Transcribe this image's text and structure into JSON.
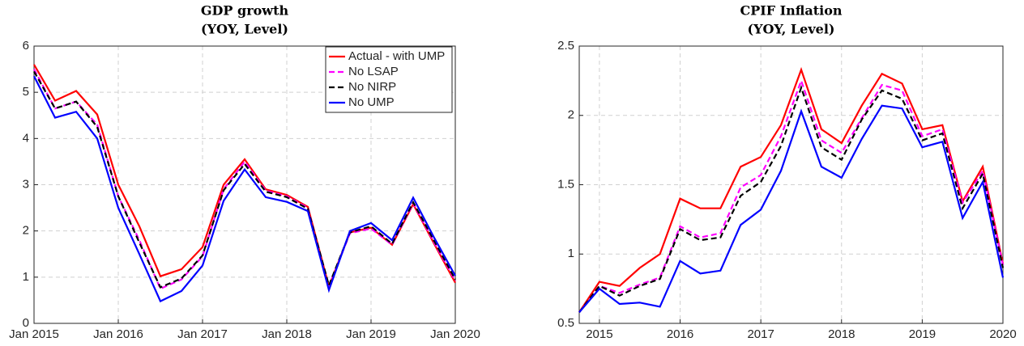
{
  "chart_data": [
    {
      "type": "line",
      "title": "GDP growth",
      "subtitle": "(YOY, Level)",
      "x": [
        2015,
        2015.25,
        2015.5,
        2015.75,
        2016,
        2016.25,
        2016.5,
        2016.75,
        2017,
        2017.25,
        2017.5,
        2017.75,
        2018,
        2018.25,
        2018.5,
        2018.75,
        2019,
        2019.25,
        2019.5,
        2019.75,
        2020
      ],
      "series": [
        {
          "name": "Actual - with UMP",
          "color": "#ff0000",
          "dash": "solid",
          "values": [
            5.6,
            4.82,
            5.03,
            4.52,
            3.0,
            2.1,
            1.02,
            1.17,
            1.65,
            3.0,
            3.55,
            2.9,
            2.78,
            2.52,
            0.8,
            1.97,
            2.07,
            1.7,
            2.58,
            1.72,
            0.88
          ]
        },
        {
          "name": "No LSAP",
          "color": "#ff00ff",
          "dash": "dashed",
          "values": [
            5.5,
            4.65,
            4.8,
            4.3,
            2.75,
            1.8,
            0.75,
            0.95,
            1.45,
            2.9,
            3.5,
            2.87,
            2.75,
            2.5,
            0.8,
            1.95,
            2.05,
            1.7,
            2.6,
            1.75,
            0.92
          ]
        },
        {
          "name": "No NIRP",
          "color": "#000000",
          "dash": "dashed",
          "values": [
            5.45,
            4.65,
            4.8,
            4.25,
            2.75,
            1.75,
            0.78,
            0.97,
            1.47,
            2.88,
            3.45,
            2.85,
            2.73,
            2.48,
            0.82,
            1.97,
            2.1,
            1.72,
            2.62,
            1.78,
            0.95
          ]
        },
        {
          "name": "No UMP",
          "color": "#0000ff",
          "dash": "solid",
          "values": [
            5.35,
            4.45,
            4.58,
            4.0,
            2.5,
            1.5,
            0.48,
            0.7,
            1.25,
            2.65,
            3.33,
            2.73,
            2.63,
            2.43,
            0.72,
            2.0,
            2.17,
            1.8,
            2.72,
            1.85,
            1.03
          ]
        }
      ],
      "xlim": [
        2015,
        2020
      ],
      "xticks": [
        {
          "value": 2015,
          "label": "Jan 2015"
        },
        {
          "value": 2016,
          "label": "Jan 2016"
        },
        {
          "value": 2017,
          "label": "Jan 2017"
        },
        {
          "value": 2018,
          "label": "Jan 2018"
        },
        {
          "value": 2019,
          "label": "Jan 2019"
        },
        {
          "value": 2020,
          "label": "Jan 2020"
        }
      ],
      "ylim": [
        0,
        6
      ],
      "yticks": [
        0,
        1,
        2,
        3,
        4,
        5,
        6
      ],
      "grid": true,
      "legend": "upper right"
    },
    {
      "type": "line",
      "title": "CPIF Inflation",
      "subtitle": "(YOY, Level)",
      "x": [
        2014.75,
        2015,
        2015.25,
        2015.5,
        2015.75,
        2016,
        2016.25,
        2016.5,
        2016.75,
        2017,
        2017.25,
        2017.5,
        2017.75,
        2018,
        2018.25,
        2018.5,
        2018.75,
        2019,
        2019.25,
        2019.5,
        2019.75,
        2020
      ],
      "series": [
        {
          "color": "#ff0000",
          "dash": "solid",
          "values": [
            0.58,
            0.8,
            0.77,
            0.9,
            1.0,
            1.4,
            1.33,
            1.33,
            1.63,
            1.7,
            1.93,
            2.33,
            1.9,
            1.8,
            2.07,
            2.3,
            2.23,
            1.9,
            1.93,
            1.38,
            1.63,
            0.93
          ]
        },
        {
          "color": "#ff00ff",
          "dash": "dashed",
          "values": [
            0.58,
            0.77,
            0.72,
            0.78,
            0.83,
            1.2,
            1.12,
            1.15,
            1.48,
            1.57,
            1.85,
            2.25,
            1.82,
            1.73,
            1.98,
            2.22,
            2.18,
            1.85,
            1.9,
            1.37,
            1.6,
            0.92
          ]
        },
        {
          "color": "#000000",
          "dash": "dashed",
          "values": [
            0.58,
            0.77,
            0.7,
            0.77,
            0.82,
            1.18,
            1.1,
            1.12,
            1.42,
            1.52,
            1.78,
            2.2,
            1.77,
            1.68,
            1.97,
            2.18,
            2.12,
            1.82,
            1.87,
            1.33,
            1.58,
            0.9
          ]
        },
        {
          "color": "#0000ff",
          "dash": "solid",
          "values": [
            0.58,
            0.75,
            0.64,
            0.65,
            0.62,
            0.95,
            0.86,
            0.88,
            1.21,
            1.32,
            1.6,
            2.03,
            1.63,
            1.55,
            1.83,
            2.07,
            2.05,
            1.77,
            1.81,
            1.26,
            1.52,
            0.83
          ]
        }
      ],
      "xlim": [
        2014.75,
        2020
      ],
      "xticks": [
        2015,
        2016,
        2017,
        2018,
        2019,
        2020
      ],
      "ylim": [
        0.5,
        2.5
      ],
      "yticks": [
        0.5,
        1,
        1.5,
        2,
        2.5
      ],
      "grid": true
    }
  ]
}
